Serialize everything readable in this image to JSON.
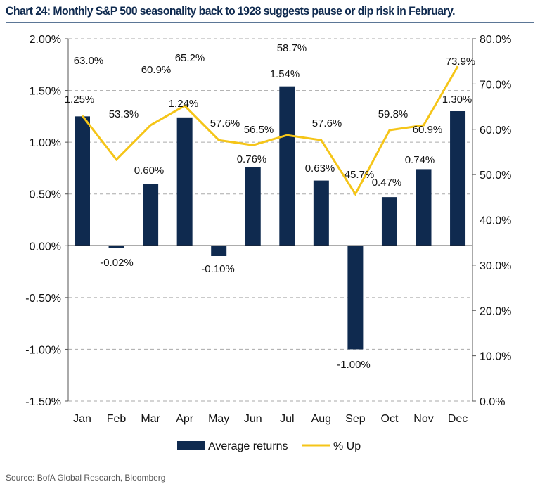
{
  "title": "Chart 24: Monthly S&P 500 seasonality back to 1928 suggests pause or dip risk in February.",
  "source": "Source:  BofA Global Research, Bloomberg",
  "chart_data": {
    "type": "bar+line",
    "categories": [
      "Jan",
      "Feb",
      "Mar",
      "Apr",
      "May",
      "Jun",
      "Jul",
      "Aug",
      "Sep",
      "Oct",
      "Nov",
      "Dec"
    ],
    "series": [
      {
        "name": "Average returns",
        "type": "bar",
        "axis": "left",
        "color": "#0f2a4f",
        "values": [
          1.25,
          -0.02,
          0.6,
          1.24,
          -0.1,
          0.76,
          1.54,
          0.63,
          -1.0,
          0.47,
          0.74,
          1.3
        ],
        "labels": [
          "1.25%",
          "-0.02%",
          "0.60%",
          "1.24%",
          "-0.10%",
          "0.76%",
          "1.54%",
          "0.63%",
          "-1.00%",
          "0.47%",
          "0.74%",
          "1.30%"
        ]
      },
      {
        "name": "% Up",
        "type": "line",
        "axis": "right",
        "color": "#f5c518",
        "values": [
          63.0,
          53.3,
          60.9,
          65.2,
          57.6,
          56.5,
          58.7,
          57.6,
          45.7,
          59.8,
          60.9,
          73.9
        ],
        "labels": [
          "63.0%",
          "53.3%",
          "60.9%",
          "65.2%",
          "57.6%",
          "56.5%",
          "58.7%",
          "57.6%",
          "45.7%",
          "59.8%",
          "60.9%",
          "73.9%"
        ]
      }
    ],
    "left_axis": {
      "ylim": [
        -1.5,
        2.0
      ],
      "ticks": [
        "2.00%",
        "1.50%",
        "1.00%",
        "0.50%",
        "0.00%",
        "-0.50%",
        "-1.00%",
        "-1.50%"
      ]
    },
    "right_axis": {
      "ylim": [
        0,
        80
      ],
      "ticks": [
        "80.0%",
        "70.0%",
        "60.0%",
        "50.0%",
        "40.0%",
        "30.0%",
        "20.0%",
        "10.0%",
        "0.0%"
      ]
    },
    "grid": true,
    "legend": "bottom"
  }
}
